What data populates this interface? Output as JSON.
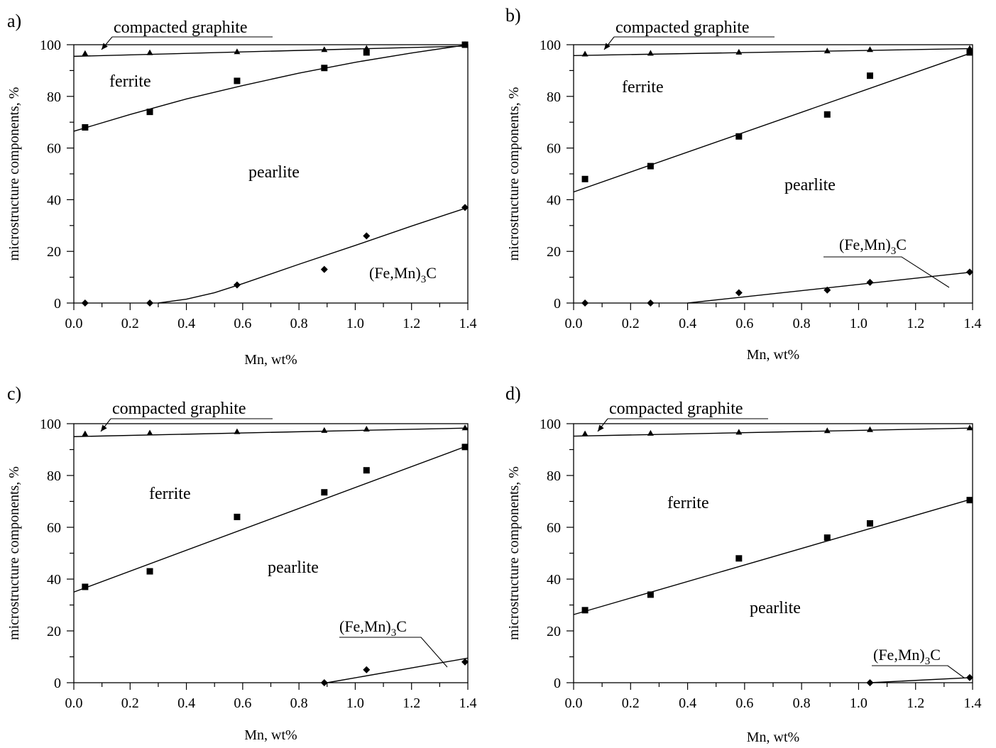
{
  "chart_data": [
    {
      "type": "scatter",
      "panel_label": "a)",
      "xlabel": "Mn, wt%",
      "ylabel": "microstructure components, %",
      "xlim": [
        0.0,
        1.4
      ],
      "ylim": [
        0,
        100
      ],
      "xticks": [
        "0.0",
        "0.2",
        "0.4",
        "0.6",
        "0.8",
        "1.0",
        "1.2",
        "1.4"
      ],
      "yticks": [
        "0",
        "20",
        "40",
        "60",
        "80",
        "100"
      ],
      "grid": false,
      "legend": "none",
      "annotations": {
        "graphite": "compacted graphite",
        "ferrite": "ferrite",
        "pearlite": "pearlite",
        "carbide": "(Fe,Mn)3C"
      },
      "series": [
        {
          "marker": "triangle",
          "x": [
            0.04,
            0.27,
            0.58,
            0.89,
            1.04,
            1.39
          ],
          "y": [
            96.5,
            96.8,
            97.2,
            98.0,
            98.5,
            100.0
          ],
          "fit_x": [
            0.0,
            1.4
          ],
          "fit_y": [
            95.5,
            99.5
          ]
        },
        {
          "marker": "square",
          "x": [
            0.04,
            0.27,
            0.58,
            0.89,
            1.04,
            1.39
          ],
          "y": [
            68,
            74,
            86,
            91,
            97,
            100
          ],
          "fit_x": [
            0.0,
            0.2,
            0.4,
            0.6,
            0.8,
            1.0,
            1.2,
            1.4
          ],
          "fit_y": [
            66.5,
            73.0,
            79.0,
            84.2,
            89.0,
            93.2,
            96.8,
            100.0
          ]
        },
        {
          "marker": "diamond",
          "x": [
            0.04,
            0.27,
            0.58,
            0.89,
            1.04,
            1.39
          ],
          "y": [
            0,
            0,
            7,
            13,
            26,
            37
          ],
          "fit_x": [
            0.3,
            0.4,
            0.5,
            0.6,
            0.8,
            1.0,
            1.2,
            1.4
          ],
          "fit_y": [
            0.0,
            1.5,
            4.0,
            7.5,
            15.0,
            22.3,
            29.8,
            37.0
          ]
        }
      ]
    },
    {
      "type": "scatter",
      "panel_label": "b)",
      "xlabel": "Mn, wt%",
      "ylabel": "microstructure components, %",
      "xlim": [
        0.0,
        1.4
      ],
      "ylim": [
        0,
        100
      ],
      "xticks": [
        "0.0",
        "0.2",
        "0.4",
        "0.6",
        "0.8",
        "1.0",
        "1.2",
        "1.4"
      ],
      "yticks": [
        "0",
        "20",
        "40",
        "60",
        "80",
        "100"
      ],
      "grid": false,
      "legend": "none",
      "annotations": {
        "graphite": "compacted graphite",
        "ferrite": "ferrite",
        "pearlite": "pearlite",
        "carbide": "(Fe,Mn)3C"
      },
      "series": [
        {
          "marker": "triangle",
          "x": [
            0.04,
            0.27,
            0.58,
            0.89,
            1.04,
            1.39
          ],
          "y": [
            96.3,
            96.6,
            97.0,
            97.5,
            98.0,
            98.5
          ],
          "fit_x": [
            0.0,
            1.4
          ],
          "fit_y": [
            95.8,
            98.5
          ]
        },
        {
          "marker": "square",
          "x": [
            0.04,
            0.27,
            0.58,
            0.89,
            1.04,
            1.39
          ],
          "y": [
            48,
            53,
            64.5,
            73,
            88,
            97
          ],
          "fit_x": [
            0.0,
            1.4
          ],
          "fit_y": [
            43.0,
            97.0
          ]
        },
        {
          "marker": "diamond",
          "x": [
            0.04,
            0.27,
            0.58,
            0.89,
            1.04,
            1.39
          ],
          "y": [
            0,
            0,
            4,
            5,
            8,
            12
          ],
          "fit_x": [
            0.4,
            1.4
          ],
          "fit_y": [
            0.0,
            12.0
          ]
        }
      ]
    },
    {
      "type": "scatter",
      "panel_label": "c)",
      "xlabel": "Mn, wt%",
      "ylabel": "microstructure components, %",
      "xlim": [
        0.0,
        1.4
      ],
      "ylim": [
        0,
        100
      ],
      "xticks": [
        "0.0",
        "0.2",
        "0.4",
        "0.6",
        "0.8",
        "1.0",
        "1.2",
        "1.4"
      ],
      "yticks": [
        "0",
        "20",
        "40",
        "60",
        "80",
        "100"
      ],
      "grid": false,
      "legend": "none",
      "annotations": {
        "graphite": "compacted graphite",
        "ferrite": "ferrite",
        "pearlite": "pearlite",
        "carbide": "(Fe,Mn)3C"
      },
      "series": [
        {
          "marker": "triangle",
          "x": [
            0.04,
            0.27,
            0.58,
            0.89,
            1.04,
            1.39
          ],
          "y": [
            96.0,
            96.3,
            96.8,
            97.3,
            97.8,
            98.3
          ],
          "fit_x": [
            0.0,
            1.4
          ],
          "fit_y": [
            95.0,
            98.3
          ]
        },
        {
          "marker": "square",
          "x": [
            0.04,
            0.27,
            0.58,
            0.89,
            1.04,
            1.39
          ],
          "y": [
            37,
            43,
            64,
            73.5,
            82,
            91
          ],
          "fit_x": [
            0.0,
            1.4
          ],
          "fit_y": [
            35.0,
            91.5
          ]
        },
        {
          "marker": "diamond",
          "x": [
            0.89,
            1.04,
            1.39
          ],
          "y": [
            0,
            5,
            8
          ],
          "fit_x": [
            0.9,
            1.4
          ],
          "fit_y": [
            0.0,
            9.5
          ]
        }
      ]
    },
    {
      "type": "scatter",
      "panel_label": "d)",
      "xlabel": "Mn, wt%",
      "ylabel": "microstructure components, %",
      "xlim": [
        0.0,
        1.4
      ],
      "ylim": [
        0,
        100
      ],
      "xticks": [
        "0.0",
        "0.2",
        "0.4",
        "0.6",
        "0.8",
        "1.0",
        "1.2",
        "1.4"
      ],
      "yticks": [
        "0",
        "20",
        "40",
        "60",
        "80",
        "100"
      ],
      "grid": false,
      "legend": "none",
      "annotations": {
        "graphite": "compacted graphite",
        "ferrite": "ferrite",
        "pearlite": "pearlite",
        "carbide": "(Fe,Mn)3C"
      },
      "series": [
        {
          "marker": "triangle",
          "x": [
            0.04,
            0.27,
            0.58,
            0.89,
            1.04,
            1.39
          ],
          "y": [
            96.0,
            96.2,
            96.6,
            97.2,
            97.6,
            98.3
          ],
          "fit_x": [
            0.0,
            1.4
          ],
          "fit_y": [
            95.2,
            98.3
          ]
        },
        {
          "marker": "square",
          "x": [
            0.04,
            0.27,
            0.58,
            0.89,
            1.04,
            1.39
          ],
          "y": [
            28,
            34,
            48,
            56,
            61.5,
            70.5
          ],
          "fit_x": [
            0.0,
            1.4
          ],
          "fit_y": [
            26.3,
            71.0
          ]
        },
        {
          "marker": "diamond",
          "x": [
            1.04,
            1.39
          ],
          "y": [
            0,
            2
          ],
          "fit_x": [
            1.04,
            1.4
          ],
          "fit_y": [
            0.0,
            2.0
          ]
        }
      ]
    }
  ]
}
